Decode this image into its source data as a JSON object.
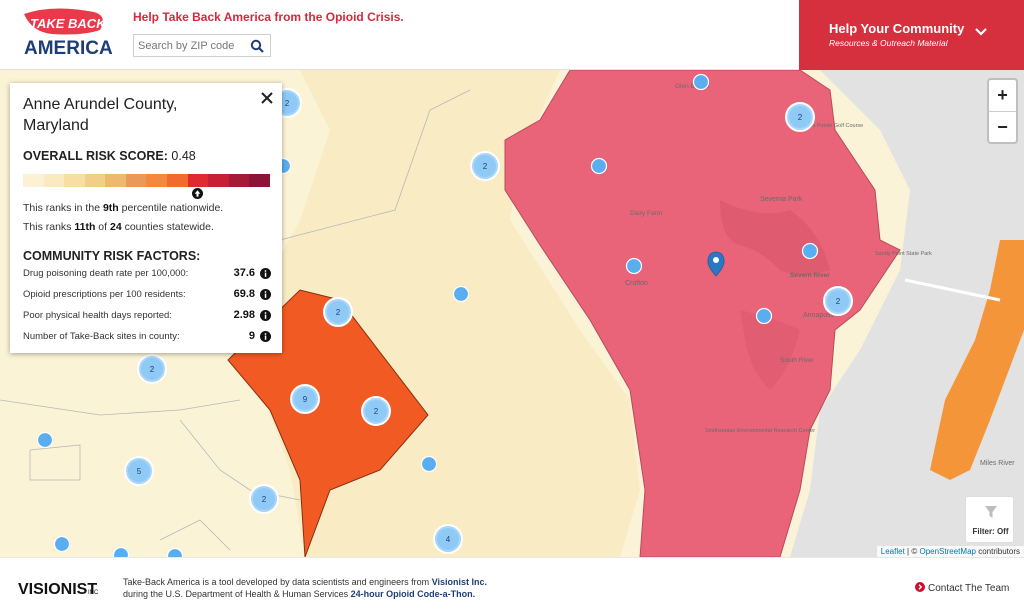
{
  "header": {
    "logo_text_top": "TAKE BACK",
    "logo_text_bottom": "AMERICA",
    "tagline": "Help Take Back America from the Opioid Crisis.",
    "search": {
      "placeholder": "Search by ZIP code",
      "value": ""
    },
    "help_title": "Help Your Community",
    "help_subtitle": "Resources & Outreach Material"
  },
  "colors": {
    "brand_red": "#d6303f",
    "high_risk_fill": "#e96479",
    "selected_county_fill": "#f15a22",
    "cluster_fill": "#5aaef0",
    "orange_region": "#f5953a"
  },
  "map": {
    "place_labels": [
      "Glen Burnie",
      "Severna Park",
      "Crofton",
      "Severn River",
      "Annapolis",
      "South River",
      "Miles River",
      "Dairy Farm",
      "Smithsonian Environmental Research Center",
      "Sandy Point State Park",
      "Compass Pointe Golf Course"
    ],
    "clusters": [
      "2",
      "2",
      "2",
      "2",
      "2",
      "2",
      "9",
      "2",
      "5",
      "2",
      "4",
      "2"
    ],
    "zoom_in": "+",
    "zoom_out": "−",
    "filter_label": "Filter: Off",
    "attribution_leaflet": "Leaflet",
    "attribution_sep": "| ©",
    "attribution_osm": "OpenStreetMap",
    "attribution_tail": "contributors"
  },
  "panel": {
    "county": "Anne Arundel County, Maryland",
    "score_label": "OVERALL RISK SCORE:",
    "score_value": "0.48",
    "risk_scale_colors": [
      "#fdf1d3",
      "#faeac0",
      "#f7dea2",
      "#f2cf86",
      "#eeb86f",
      "#e99a5a",
      "#f2893d",
      "#f26a2d",
      "#e12a2f",
      "#c91f35",
      "#a51b37",
      "#8a1538"
    ],
    "highlight_index": 8,
    "rank_nat_pre": "This ranks in the",
    "rank_nat_val": "9th",
    "rank_nat_post": "percentile nationwide.",
    "rank_state_pre": "This ranks",
    "rank_state_val": "11th",
    "rank_state_of": "of",
    "rank_state_total": "24",
    "rank_state_post": "counties statewide.",
    "factors_title": "COMMUNITY RISK FACTORS:",
    "factors": [
      {
        "label": "Drug poisoning death rate per 100,000:",
        "value": "37.6"
      },
      {
        "label": "Opioid prescriptions per 100 residents:",
        "value": "69.8"
      },
      {
        "label": "Poor physical health days reported:",
        "value": "2.98"
      },
      {
        "label": "Number of Take-Back sites in county:",
        "value": "9"
      }
    ]
  },
  "footer": {
    "logo_text": "VISIONIST",
    "logo_suffix": "INC",
    "line1_pre": "Take-Back America is a tool developed by data scientists and engineers from",
    "line1_link": "Visionist Inc.",
    "line2_pre": "during the U.S. Department of Health & Human Services",
    "line2_link": "24-hour Opioid Code-a-Thon.",
    "contact": "Contact The Team"
  }
}
